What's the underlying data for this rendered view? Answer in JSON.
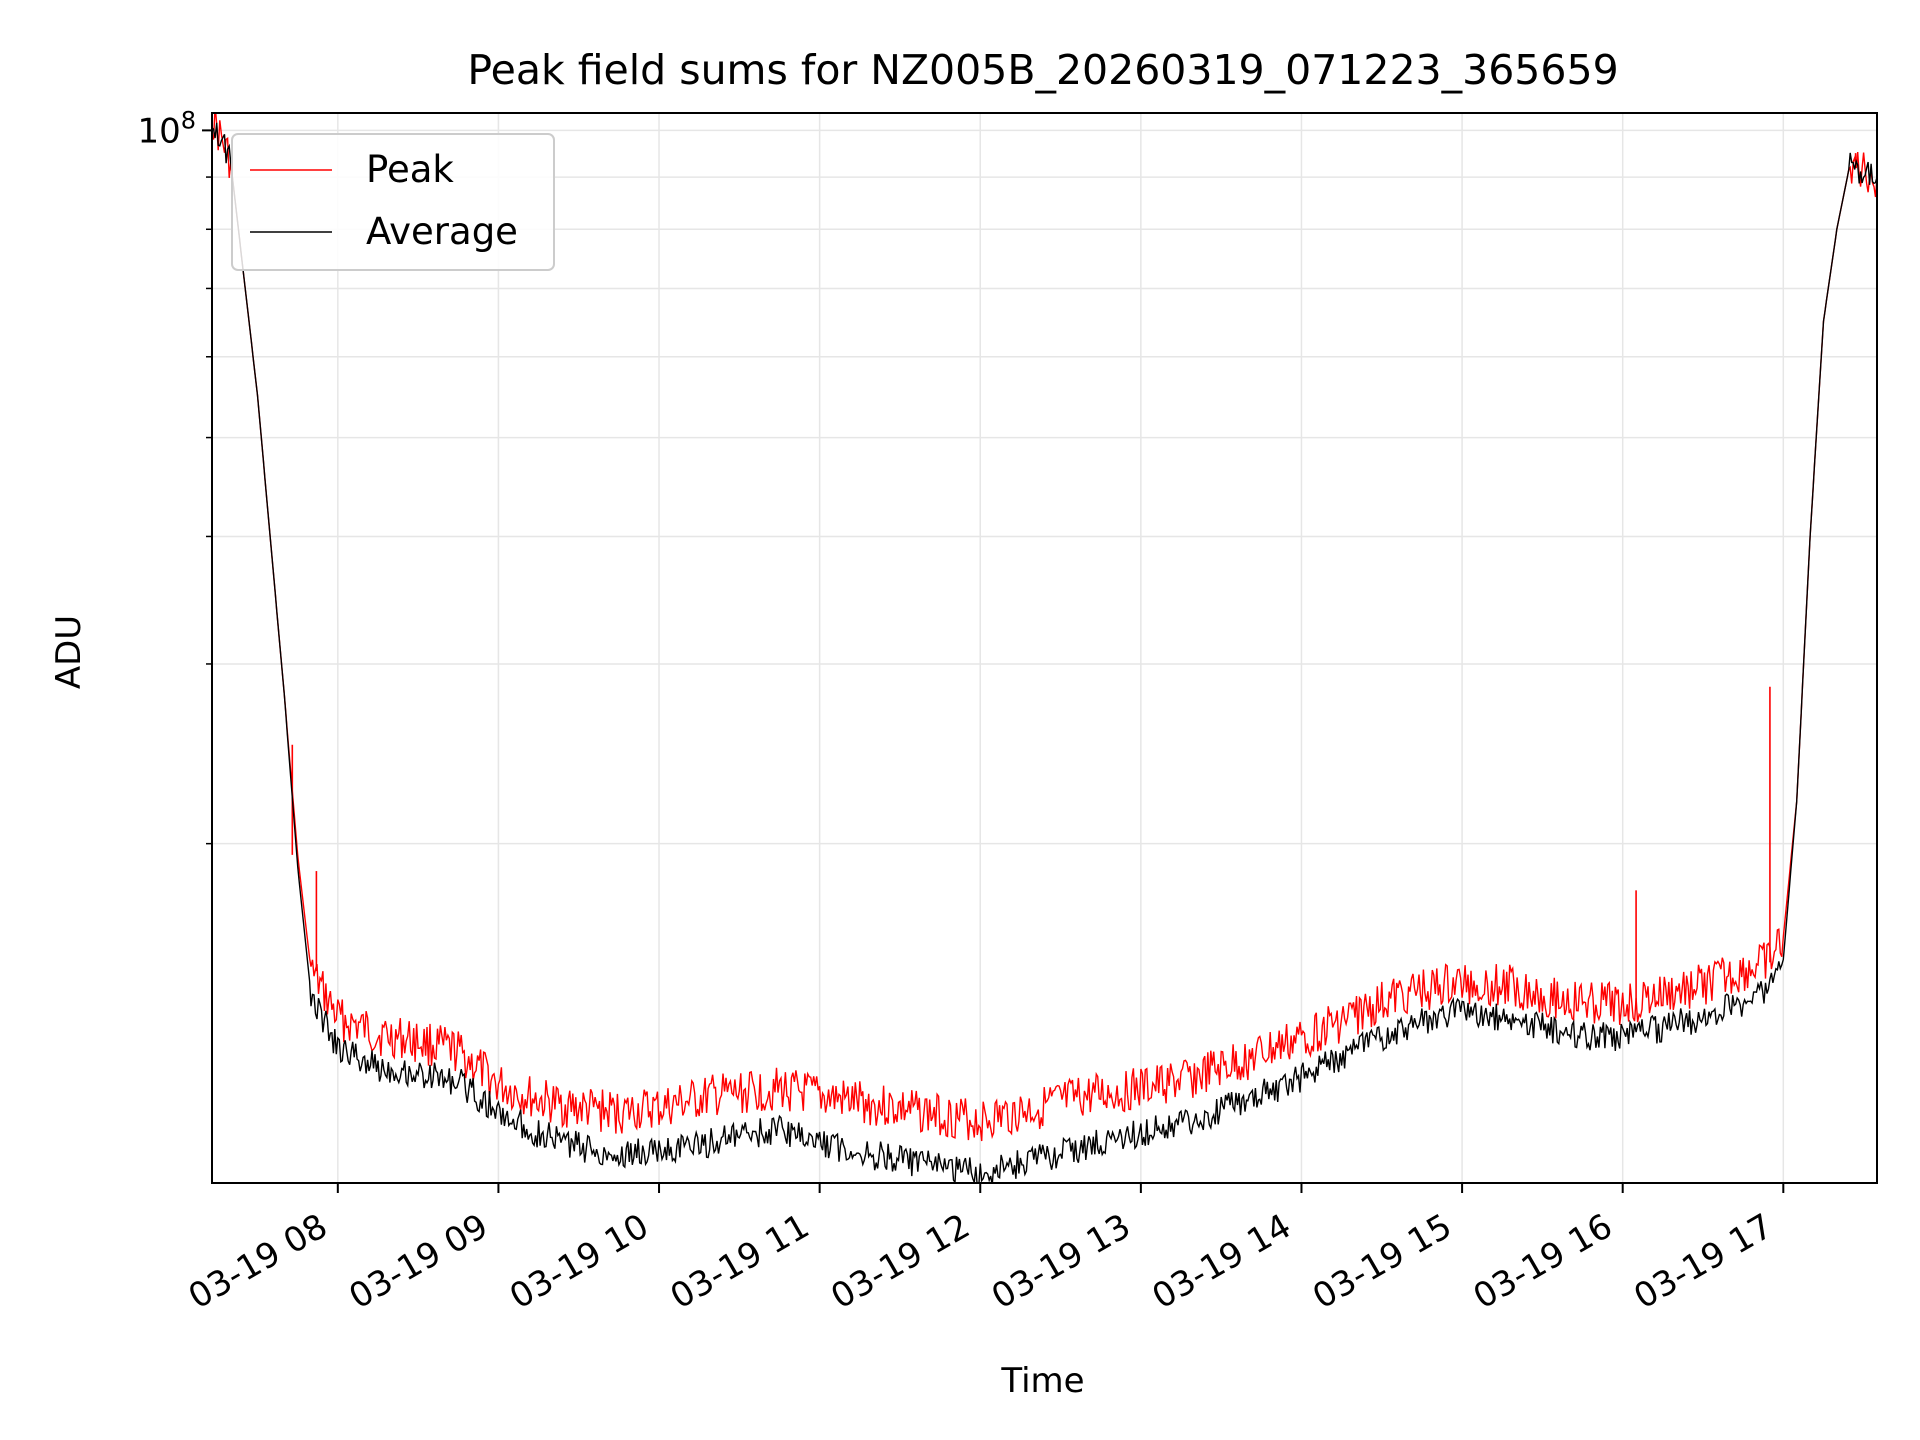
{
  "chart_data": {
    "type": "line",
    "title": "Peak field sums for NZ005B_20260319_071223_365659",
    "xlabel": "Time",
    "ylabel": "ADU",
    "x_axis": {
      "kind": "datetime",
      "range": [
        "2026-03-19T07:13",
        "2026-03-19T17:35"
      ],
      "tick_values": [
        "2026-03-19T08:00",
        "2026-03-19T09:00",
        "2026-03-19T10:00",
        "2026-03-19T11:00",
        "2026-03-19T12:00",
        "2026-03-19T13:00",
        "2026-03-19T14:00",
        "2026-03-19T15:00",
        "2026-03-19T16:00",
        "2026-03-19T17:00"
      ],
      "tick_labels": [
        "03-19 08",
        "03-19 09",
        "03-19 10",
        "03-19 11",
        "03-19 12",
        "03-19 13",
        "03-19 14",
        "03-19 15",
        "03-19 16",
        "03-19 17"
      ],
      "tick_rotation_deg": 30
    },
    "y_axis": {
      "scale": "log",
      "range": [
        9300000,
        104000000
      ],
      "major_ticks": [
        100000000
      ],
      "major_tick_labels": [
        {
          "base": "10",
          "exp": "8"
        }
      ],
      "minor_ticks": [
        20000000,
        30000000,
        40000000,
        50000000,
        60000000,
        70000000,
        80000000,
        90000000
      ]
    },
    "grid": true,
    "legend_position": "top-left",
    "series": [
      {
        "name": "Peak",
        "color": "#ff0000",
        "x": [
          "2026-03-19T07:13",
          "2026-03-19T07:20",
          "2026-03-19T07:30",
          "2026-03-19T07:40",
          "2026-03-19T07:45",
          "2026-03-19T07:50",
          "2026-03-19T08:00",
          "2026-03-19T08:15",
          "2026-03-19T08:30",
          "2026-03-19T08:45",
          "2026-03-19T09:00",
          "2026-03-19T09:15",
          "2026-03-19T09:30",
          "2026-03-19T09:45",
          "2026-03-19T10:00",
          "2026-03-19T10:20",
          "2026-03-19T10:45",
          "2026-03-19T11:00",
          "2026-03-19T11:20",
          "2026-03-19T11:40",
          "2026-03-19T12:00",
          "2026-03-19T12:20",
          "2026-03-19T12:40",
          "2026-03-19T13:00",
          "2026-03-19T13:20",
          "2026-03-19T13:40",
          "2026-03-19T14:00",
          "2026-03-19T14:20",
          "2026-03-19T14:40",
          "2026-03-19T15:00",
          "2026-03-19T15:20",
          "2026-03-19T15:40",
          "2026-03-19T16:00",
          "2026-03-19T16:20",
          "2026-03-19T16:40",
          "2026-03-19T16:55",
          "2026-03-19T17:00",
          "2026-03-19T17:05",
          "2026-03-19T17:10",
          "2026-03-19T17:15",
          "2026-03-19T17:20",
          "2026-03-19T17:25",
          "2026-03-19T17:30",
          "2026-03-19T17:35"
        ],
        "y": [
          103000000,
          93000000,
          55000000,
          28000000,
          19500000,
          15000000,
          13500000,
          13000000,
          12800000,
          12500000,
          11600000,
          11200000,
          11000000,
          10900000,
          11000000,
          11300000,
          11500000,
          11300000,
          11100000,
          10900000,
          10700000,
          11000000,
          11300000,
          11500000,
          11800000,
          12300000,
          12900000,
          13600000,
          14300000,
          14600000,
          14500000,
          14000000,
          13900000,
          14300000,
          14800000,
          15300000,
          16200000,
          22000000,
          40000000,
          65000000,
          80000000,
          93000000,
          91000000,
          90000000
        ],
        "spikes": [
          {
            "x": "2026-03-19T07:43",
            "y": 25000000
          },
          {
            "x": "2026-03-19T07:52",
            "y": 18800000
          },
          {
            "x": "2026-03-19T16:05",
            "y": 18000000
          },
          {
            "x": "2026-03-19T16:55",
            "y": 28500000
          },
          {
            "x": "2026-03-19T17:27",
            "y": 95000000
          }
        ]
      },
      {
        "name": "Average",
        "color": "#000000",
        "x": [
          "2026-03-19T07:13",
          "2026-03-19T07:20",
          "2026-03-19T07:30",
          "2026-03-19T07:40",
          "2026-03-19T07:45",
          "2026-03-19T07:50",
          "2026-03-19T08:00",
          "2026-03-19T08:15",
          "2026-03-19T08:30",
          "2026-03-19T08:45",
          "2026-03-19T09:00",
          "2026-03-19T09:15",
          "2026-03-19T09:30",
          "2026-03-19T09:45",
          "2026-03-19T10:00",
          "2026-03-19T10:20",
          "2026-03-19T10:45",
          "2026-03-19T11:00",
          "2026-03-19T11:20",
          "2026-03-19T11:40",
          "2026-03-19T12:00",
          "2026-03-19T12:20",
          "2026-03-19T12:40",
          "2026-03-19T13:00",
          "2026-03-19T13:20",
          "2026-03-19T13:40",
          "2026-03-19T14:00",
          "2026-03-19T14:20",
          "2026-03-19T14:40",
          "2026-03-19T15:00",
          "2026-03-19T15:20",
          "2026-03-19T15:40",
          "2026-03-19T16:00",
          "2026-03-19T16:20",
          "2026-03-19T16:40",
          "2026-03-19T16:55",
          "2026-03-19T17:00",
          "2026-03-19T17:05",
          "2026-03-19T17:10",
          "2026-03-19T17:15",
          "2026-03-19T17:20",
          "2026-03-19T17:25",
          "2026-03-19T17:30",
          "2026-03-19T17:35"
        ],
        "y": [
          103000000,
          93000000,
          55000000,
          28000000,
          19000000,
          14200000,
          12600000,
          12100000,
          11900000,
          11700000,
          10900000,
          10400000,
          10100000,
          9900000,
          10000000,
          10200000,
          10500000,
          10200000,
          9900000,
          9700000,
          9500000,
          9800000,
          10100000,
          10400000,
          10700000,
          11200000,
          11800000,
          12600000,
          13300000,
          13700000,
          13500000,
          13000000,
          12900000,
          13300000,
          13800000,
          14400000,
          15400000,
          22000000,
          40000000,
          65000000,
          80000000,
          93000000,
          91000000,
          90000000
        ]
      }
    ]
  }
}
